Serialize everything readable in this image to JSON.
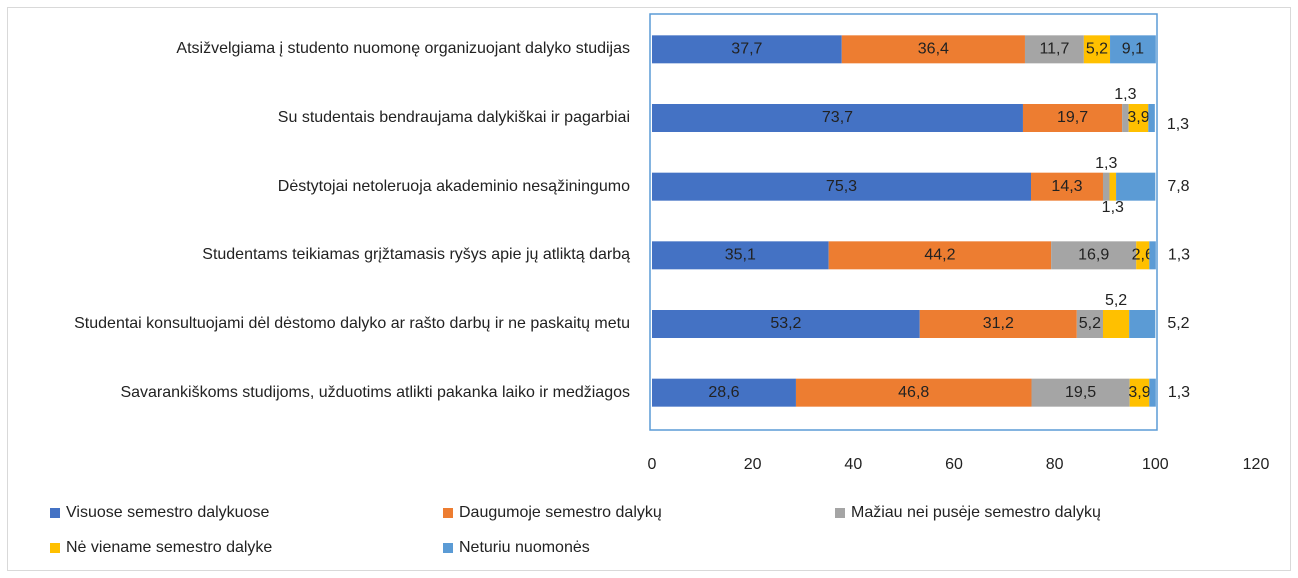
{
  "chart_data": {
    "type": "stacked_barh",
    "categories": [
      "Atsižvelgiama į studento nuomonę organizuojant dalyko studijas",
      "Su studentais bendraujama dalykiškai ir pagarbiai",
      "Dėstytojai netoleruoja akademinio nesąžiningumo",
      "Studentams teikiamas grįžtamasis ryšys apie jų atliktą darbą",
      "Studentai konsultuojami dėl dėstomo dalyko ar rašto darbų ir ne paskaitų metu",
      "Savarankiškoms studijoms, užduotims atlikti pakanka laiko ir medžiagos"
    ],
    "series": [
      {
        "name": "Visuose semestro dalykuose",
        "color": "#4472c4",
        "values": [
          37.7,
          73.7,
          75.3,
          35.1,
          53.2,
          28.6
        ],
        "value_labels": [
          "37,7",
          "73,7",
          "75,3",
          "35,1",
          "53,2",
          "28,6"
        ]
      },
      {
        "name": "Daugumoje semestro dalykų",
        "color": "#ed7d31",
        "values": [
          36.4,
          19.7,
          14.3,
          44.2,
          31.2,
          46.8
        ],
        "value_labels": [
          "36,4",
          "19,7",
          "14,3",
          "44,2",
          "31,2",
          "46,8"
        ]
      },
      {
        "name": "Mažiau nei pusėje semestro dalykų",
        "color": "#a5a5a5",
        "values": [
          11.7,
          1.3,
          1.3,
          16.9,
          5.2,
          19.5
        ],
        "value_labels": [
          "11,7",
          "1,3",
          "1,3",
          "16,9",
          "5,2",
          "19,5"
        ]
      },
      {
        "name": "Nė viename semestro dalyke",
        "color": "#ffc000",
        "values": [
          5.2,
          3.9,
          1.3,
          2.6,
          5.2,
          3.9
        ],
        "value_labels": [
          "5,2",
          "3,9",
          "1,3",
          "2,6",
          "5,2",
          "3,9"
        ]
      },
      {
        "name": "Neturiu nuomonės",
        "color": "#5b9bd5",
        "values": [
          9.1,
          1.3,
          7.8,
          1.3,
          5.2,
          1.3
        ],
        "value_labels": [
          "9,1",
          "1,3",
          "7,8",
          "1,3",
          "5,2",
          "1,3"
        ]
      }
    ],
    "xlim": [
      0,
      120
    ],
    "xticks": [
      0,
      20,
      40,
      60,
      80,
      100,
      120
    ],
    "grid": false,
    "legend": "bottom"
  }
}
